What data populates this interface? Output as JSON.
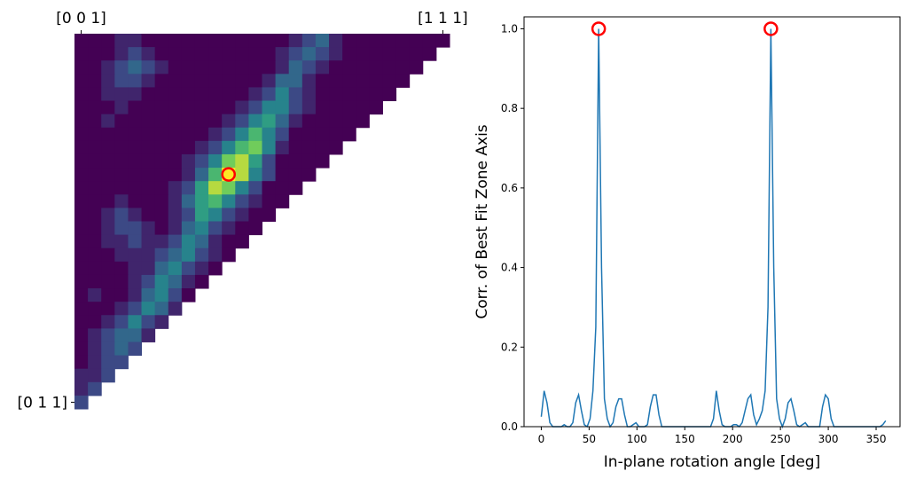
{
  "chart_data": [
    {
      "type": "heatmap",
      "colormap": "viridis",
      "xticks": [
        {
          "value": 0,
          "label": "[0 0 1]"
        },
        {
          "value": 27,
          "label": "[1 1 1]"
        }
      ],
      "yticks": [
        {
          "value": 27,
          "label": "[0 1 1]"
        }
      ],
      "marker": {
        "x": 11,
        "y": 10,
        "color": "red"
      },
      "values": [
        [
          0.1,
          0.1,
          0.1,
          0.2,
          0.2,
          0.1,
          0.1,
          0.1,
          0.1,
          0.1,
          0.1,
          0.1,
          0.1,
          0.1,
          0.1,
          0.1,
          0.2,
          0.3,
          0.4,
          0.2,
          0.1,
          0.1,
          0.1,
          0.1,
          0.1,
          0.1,
          0.1,
          0.1
        ],
        [
          0.1,
          0.1,
          0.1,
          0.2,
          0.3,
          0.2,
          0.1,
          0.1,
          0.1,
          0.1,
          0.1,
          0.1,
          0.1,
          0.1,
          0.1,
          0.2,
          0.3,
          0.4,
          0.3,
          0.2,
          0.1,
          0.1,
          0.1,
          0.1,
          0.1,
          0.1,
          0.1
        ],
        [
          0.1,
          0.1,
          0.2,
          0.3,
          0.4,
          0.3,
          0.2,
          0.1,
          0.1,
          0.1,
          0.1,
          0.1,
          0.1,
          0.1,
          0.1,
          0.2,
          0.4,
          0.3,
          0.2,
          0.1,
          0.1,
          0.1,
          0.1,
          0.1,
          0.1,
          0.1
        ],
        [
          0.1,
          0.1,
          0.2,
          0.3,
          0.3,
          0.2,
          0.1,
          0.1,
          0.1,
          0.1,
          0.1,
          0.1,
          0.1,
          0.1,
          0.2,
          0.4,
          0.4,
          0.2,
          0.1,
          0.1,
          0.1,
          0.1,
          0.1,
          0.1,
          0.1
        ],
        [
          0.1,
          0.1,
          0.2,
          0.2,
          0.2,
          0.1,
          0.1,
          0.1,
          0.1,
          0.1,
          0.1,
          0.1,
          0.1,
          0.2,
          0.3,
          0.5,
          0.3,
          0.2,
          0.1,
          0.1,
          0.1,
          0.1,
          0.1,
          0.1
        ],
        [
          0.1,
          0.1,
          0.1,
          0.2,
          0.1,
          0.1,
          0.1,
          0.1,
          0.1,
          0.1,
          0.1,
          0.1,
          0.2,
          0.3,
          0.5,
          0.5,
          0.3,
          0.2,
          0.1,
          0.1,
          0.1,
          0.1,
          0.1
        ],
        [
          0.1,
          0.1,
          0.2,
          0.1,
          0.1,
          0.1,
          0.1,
          0.1,
          0.1,
          0.1,
          0.1,
          0.2,
          0.3,
          0.5,
          0.6,
          0.4,
          0.2,
          0.1,
          0.1,
          0.1,
          0.1,
          0.1
        ],
        [
          0.1,
          0.1,
          0.1,
          0.1,
          0.1,
          0.1,
          0.1,
          0.1,
          0.1,
          0.1,
          0.2,
          0.3,
          0.5,
          0.7,
          0.5,
          0.3,
          0.1,
          0.1,
          0.1,
          0.1,
          0.1
        ],
        [
          0.1,
          0.1,
          0.1,
          0.1,
          0.1,
          0.1,
          0.1,
          0.1,
          0.1,
          0.2,
          0.3,
          0.5,
          0.7,
          0.8,
          0.5,
          0.2,
          0.1,
          0.1,
          0.1,
          0.1
        ],
        [
          0.1,
          0.1,
          0.1,
          0.1,
          0.1,
          0.1,
          0.1,
          0.1,
          0.2,
          0.3,
          0.5,
          0.8,
          0.9,
          0.6,
          0.3,
          0.1,
          0.1,
          0.1,
          0.1
        ],
        [
          0.1,
          0.1,
          0.1,
          0.1,
          0.1,
          0.1,
          0.1,
          0.1,
          0.2,
          0.4,
          0.7,
          1.0,
          0.9,
          0.5,
          0.3,
          0.1,
          0.1,
          0.1
        ],
        [
          0.1,
          0.1,
          0.1,
          0.1,
          0.1,
          0.1,
          0.1,
          0.2,
          0.3,
          0.6,
          0.9,
          0.8,
          0.5,
          0.3,
          0.1,
          0.1,
          0.1
        ],
        [
          0.1,
          0.1,
          0.1,
          0.2,
          0.1,
          0.1,
          0.1,
          0.2,
          0.4,
          0.6,
          0.7,
          0.5,
          0.3,
          0.2,
          0.1,
          0.1
        ],
        [
          0.1,
          0.1,
          0.2,
          0.3,
          0.2,
          0.1,
          0.1,
          0.2,
          0.3,
          0.6,
          0.5,
          0.3,
          0.2,
          0.1,
          0.1
        ],
        [
          0.1,
          0.1,
          0.2,
          0.3,
          0.3,
          0.2,
          0.1,
          0.2,
          0.4,
          0.5,
          0.3,
          0.2,
          0.1,
          0.1
        ],
        [
          0.1,
          0.1,
          0.2,
          0.2,
          0.3,
          0.2,
          0.2,
          0.3,
          0.5,
          0.4,
          0.2,
          0.1,
          0.1
        ],
        [
          0.1,
          0.1,
          0.1,
          0.2,
          0.2,
          0.2,
          0.3,
          0.4,
          0.5,
          0.3,
          0.2,
          0.1
        ],
        [
          0.1,
          0.1,
          0.1,
          0.1,
          0.2,
          0.2,
          0.4,
          0.5,
          0.3,
          0.2,
          0.1
        ],
        [
          0.1,
          0.1,
          0.1,
          0.1,
          0.2,
          0.3,
          0.5,
          0.4,
          0.2,
          0.1
        ],
        [
          0.1,
          0.2,
          0.1,
          0.1,
          0.2,
          0.4,
          0.5,
          0.3,
          0.1
        ],
        [
          0.1,
          0.1,
          0.1,
          0.2,
          0.3,
          0.5,
          0.4,
          0.2
        ],
        [
          0.1,
          0.1,
          0.2,
          0.3,
          0.5,
          0.3,
          0.2
        ],
        [
          0.1,
          0.2,
          0.3,
          0.4,
          0.4,
          0.2
        ],
        [
          0.1,
          0.2,
          0.3,
          0.4,
          0.3
        ],
        [
          0.1,
          0.2,
          0.3,
          0.3
        ],
        [
          0.2,
          0.2,
          0.3
        ],
        [
          0.2,
          0.3
        ],
        [
          0.3
        ]
      ]
    },
    {
      "type": "line",
      "xlabel": "In-plane rotation angle [deg]",
      "ylabel": "Corr. of Best Fit Zone Axis",
      "xlim": [
        -18,
        375
      ],
      "ylim": [
        0,
        1.03
      ],
      "xticks": [
        0,
        50,
        100,
        150,
        200,
        250,
        300,
        350
      ],
      "yticks": [
        {
          "value": 0,
          "label": "0.0"
        },
        0.2,
        0.4,
        0.6,
        0.8,
        {
          "value": 1,
          "label": "1.0"
        }
      ],
      "x": [
        0,
        3,
        6,
        9,
        12,
        15,
        18,
        21,
        24,
        27,
        30,
        33,
        36,
        39,
        42,
        45,
        48,
        51,
        54,
        57,
        60,
        63,
        66,
        69,
        72,
        75,
        78,
        81,
        84,
        87,
        90,
        93,
        96,
        99,
        102,
        105,
        108,
        111,
        114,
        117,
        120,
        123,
        126,
        129,
        132,
        135,
        138,
        141,
        144,
        147,
        150,
        153,
        156,
        159,
        162,
        165,
        168,
        171,
        174,
        177,
        180,
        183,
        186,
        189,
        192,
        195,
        198,
        201,
        204,
        207,
        210,
        213,
        216,
        219,
        222,
        225,
        228,
        231,
        234,
        237,
        240,
        243,
        246,
        249,
        252,
        255,
        258,
        261,
        264,
        267,
        270,
        273,
        276,
        279,
        282,
        285,
        288,
        291,
        294,
        297,
        300,
        303,
        306,
        309,
        312,
        315,
        318,
        321,
        324,
        327,
        330,
        333,
        336,
        339,
        342,
        345,
        348,
        351,
        354,
        357,
        360
      ],
      "series": [
        {
          "color": "#1f77b4",
          "values": [
            0.025,
            0.09,
            0.06,
            0.01,
            0,
            0,
            0,
            0,
            0.005,
            0,
            0,
            0.01,
            0.06,
            0.08,
            0.04,
            0.005,
            0,
            0.02,
            0.09,
            0.25,
            1.0,
            0.4,
            0.07,
            0.02,
            0,
            0.01,
            0.05,
            0.07,
            0.07,
            0.03,
            0,
            0,
            0.005,
            0.01,
            0,
            0,
            0,
            0.005,
            0.05,
            0.08,
            0.08,
            0.03,
            0,
            0,
            0,
            0,
            0,
            0,
            0,
            0,
            0,
            0,
            0,
            0,
            0,
            0,
            0,
            0,
            0,
            0,
            0.02,
            0.09,
            0.04,
            0.005,
            0,
            0,
            0,
            0.005,
            0.005,
            0,
            0.01,
            0.04,
            0.07,
            0.08,
            0.03,
            0.005,
            0.02,
            0.04,
            0.09,
            0.3,
            1.0,
            0.4,
            0.07,
            0.02,
            0,
            0.02,
            0.06,
            0.07,
            0.04,
            0.005,
            0,
            0.005,
            0.01,
            0,
            0,
            0,
            0,
            0,
            0.05,
            0.08,
            0.07,
            0.02,
            0,
            0,
            0,
            0,
            0,
            0,
            0,
            0,
            0,
            0,
            0,
            0,
            0,
            0,
            0,
            0,
            0,
            0.005,
            0.015
          ]
        }
      ],
      "highlights": {
        "x": [
          60,
          240
        ],
        "values": [
          1.0,
          1.0
        ],
        "color": "red"
      }
    }
  ]
}
